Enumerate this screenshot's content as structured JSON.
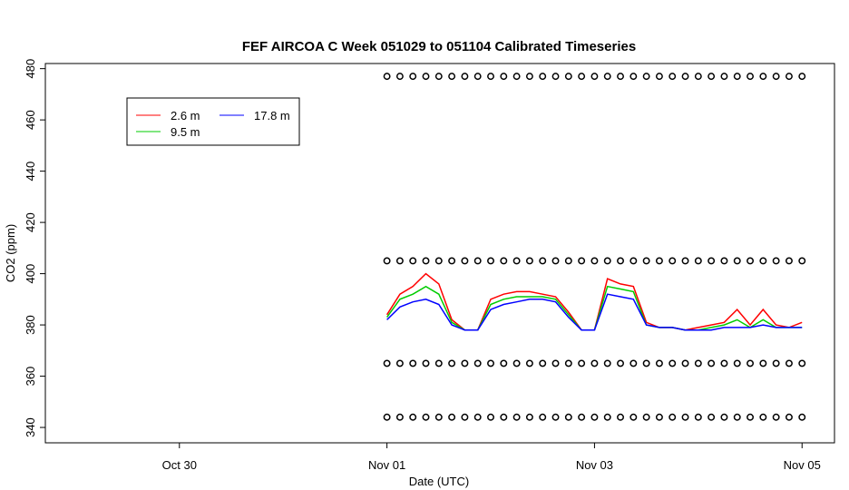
{
  "chart_data": {
    "type": "line",
    "title": "FEF AIRCOA C  Week 051029 to 051104  Calibrated Timeseries",
    "xlabel": "Date (UTC)",
    "ylabel": "CO2 (ppm)",
    "xlim": [
      "Oct 28 17:00",
      "Nov 05 07:30"
    ],
    "xticks": [
      {
        "value": "Oct 30 00:00",
        "label": "Oct 30"
      },
      {
        "value": "Nov 01 00:00",
        "label": "Nov 01"
      },
      {
        "value": "Nov 03 00:00",
        "label": "Nov 03"
      },
      {
        "value": "Nov 05 00:00",
        "label": "Nov 05"
      }
    ],
    "ylim": [
      334,
      482
    ],
    "yticks": [
      340,
      360,
      380,
      400,
      420,
      440,
      460,
      480
    ],
    "legend": "top-left",
    "x": [
      "Nov 01 00:00",
      "Nov 01 03:00",
      "Nov 01 06:00",
      "Nov 01 09:00",
      "Nov 01 12:00",
      "Nov 01 15:00",
      "Nov 01 18:00",
      "Nov 01 21:00",
      "Nov 02 00:00",
      "Nov 02 03:00",
      "Nov 02 06:00",
      "Nov 02 09:00",
      "Nov 02 12:00",
      "Nov 02 15:00",
      "Nov 02 18:00",
      "Nov 02 21:00",
      "Nov 03 00:00",
      "Nov 03 03:00",
      "Nov 03 06:00",
      "Nov 03 09:00",
      "Nov 03 12:00",
      "Nov 03 15:00",
      "Nov 03 18:00",
      "Nov 03 21:00",
      "Nov 04 00:00",
      "Nov 04 03:00",
      "Nov 04 06:00",
      "Nov 04 09:00",
      "Nov 04 12:00",
      "Nov 04 15:00",
      "Nov 04 18:00",
      "Nov 04 21:00",
      "Nov 05 00:00"
    ],
    "series": [
      {
        "name": "2.6 m",
        "color": "#ff0000",
        "values": [
          384,
          392,
          395,
          400,
          396,
          382,
          378,
          378,
          390,
          392,
          393,
          393,
          392,
          391,
          385,
          378,
          378,
          398,
          396,
          395,
          381,
          379,
          379,
          378,
          379,
          380,
          381,
          386,
          380,
          386,
          380,
          379,
          381
        ]
      },
      {
        "name": "9.5 m",
        "color": "#00cc00",
        "values": [
          383,
          390,
          392,
          395,
          392,
          381,
          378,
          378,
          388,
          390,
          391,
          391,
          391,
          390,
          384,
          378,
          378,
          395,
          394,
          393,
          380,
          379,
          379,
          378,
          378,
          379,
          380,
          382,
          379,
          382,
          379,
          379,
          379
        ]
      },
      {
        "name": "17.8 m",
        "color": "#0000ff",
        "values": [
          382,
          387,
          389,
          390,
          388,
          380,
          378,
          378,
          386,
          388,
          389,
          390,
          390,
          389,
          383,
          378,
          378,
          392,
          391,
          390,
          380,
          379,
          379,
          378,
          378,
          378,
          379,
          379,
          379,
          380,
          379,
          379,
          379
        ]
      }
    ],
    "calibration": {
      "color": "#000000",
      "levels": [
        [
          477,
          477,
          477,
          477,
          477,
          477,
          477,
          477,
          477,
          477,
          477,
          477,
          477,
          477,
          477,
          477,
          477,
          477,
          477,
          477,
          477,
          477,
          477,
          477,
          477,
          477,
          477,
          477,
          477,
          477,
          477,
          477,
          477
        ],
        [
          405,
          405,
          405,
          405,
          405,
          405,
          405,
          405,
          405,
          405,
          405,
          405,
          405,
          405,
          405,
          405,
          405,
          405,
          405,
          405,
          405,
          405,
          405,
          405,
          405,
          405,
          405,
          405,
          405,
          405,
          405,
          405,
          405
        ],
        [
          365,
          365,
          365,
          365,
          365,
          365,
          365,
          365,
          365,
          365,
          365,
          365,
          365,
          365,
          365,
          365,
          365,
          365,
          365,
          365,
          365,
          365,
          365,
          365,
          365,
          365,
          365,
          365,
          365,
          365,
          365,
          365,
          365
        ],
        [
          344,
          344,
          344,
          344,
          344,
          344,
          344,
          344,
          344,
          344,
          344,
          344,
          344,
          344,
          344,
          344,
          344,
          344,
          344,
          344,
          344,
          344,
          344,
          344,
          344,
          344,
          344,
          344,
          344,
          344,
          344,
          344,
          344
        ]
      ]
    }
  }
}
